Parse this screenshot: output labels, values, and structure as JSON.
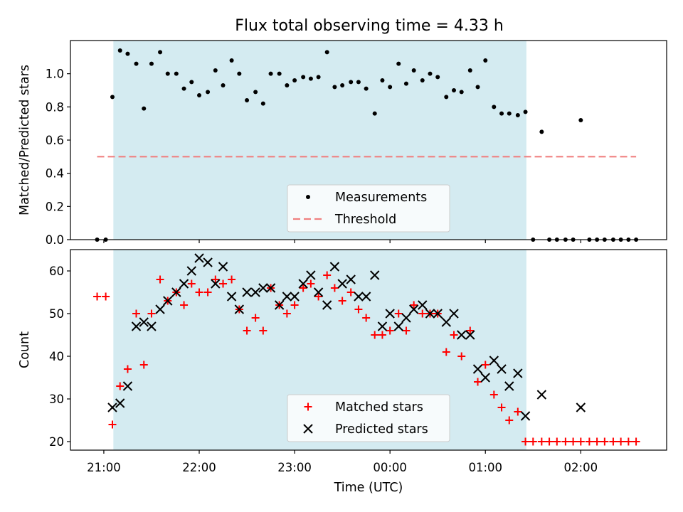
{
  "chart_data": [
    {
      "type": "scatter",
      "title": "Flux total observing time = 4.33 h",
      "xlabel": "",
      "ylabel": "Matched/Predicted stars",
      "xlim": [
        -0.35,
        5.9
      ],
      "ylim": [
        0.0,
        1.2
      ],
      "yticks": [
        0.0,
        0.2,
        0.4,
        0.6,
        0.8,
        1.0
      ],
      "ytick_labels": [
        "0.0",
        "0.2",
        "0.4",
        "0.6",
        "0.8",
        "1.0"
      ],
      "xticks": [
        0,
        1,
        2,
        3,
        4,
        5
      ],
      "shaded_span": [
        0.1,
        4.43
      ],
      "shaded_color": "#d4ebf1",
      "threshold": {
        "value": 0.5,
        "x_range": [
          -0.07,
          5.58
        ],
        "color": "#f08080"
      },
      "legend": {
        "location": "bottom-center",
        "entries": [
          "Measurements",
          "Threshold"
        ]
      },
      "series": [
        {
          "name": "Measurements",
          "marker": "dot",
          "color": "#000000",
          "x": [
            -0.07,
            0.02,
            0.09,
            0.17,
            0.25,
            0.34,
            0.42,
            0.5,
            0.59,
            0.67,
            0.76,
            0.84,
            0.92,
            1.0,
            1.09,
            1.17,
            1.25,
            1.34,
            1.42,
            1.5,
            1.59,
            1.67,
            1.75,
            1.84,
            1.92,
            2.0,
            2.09,
            2.17,
            2.25,
            2.34,
            2.42,
            2.5,
            2.59,
            2.67,
            2.75,
            2.84,
            2.92,
            3.0,
            3.09,
            3.17,
            3.25,
            3.34,
            3.42,
            3.5,
            3.59,
            3.67,
            3.75,
            3.84,
            3.92,
            4.0,
            4.09,
            4.17,
            4.25,
            4.34,
            4.42,
            4.5,
            4.59,
            4.67,
            4.75,
            4.84,
            4.92,
            5.0,
            5.09,
            5.17,
            5.25,
            5.34,
            5.42,
            5.5,
            5.58
          ],
          "values": [
            0.0,
            0.0,
            0.86,
            1.14,
            1.12,
            1.06,
            0.79,
            1.06,
            1.13,
            1.0,
            1.0,
            0.91,
            0.95,
            0.87,
            0.89,
            1.02,
            0.93,
            1.08,
            1.0,
            0.84,
            0.89,
            0.82,
            1.0,
            1.0,
            0.93,
            0.96,
            0.98,
            0.97,
            0.98,
            1.13,
            0.92,
            0.93,
            0.95,
            0.95,
            0.91,
            0.76,
            0.96,
            0.92,
            1.06,
            0.94,
            1.02,
            0.96,
            1.0,
            0.98,
            0.86,
            0.9,
            0.89,
            1.02,
            0.92,
            1.08,
            0.8,
            0.76,
            0.76,
            0.75,
            0.77,
            0.0,
            0.65,
            0.0,
            0.0,
            0.0,
            0.0,
            0.72,
            0.0,
            0.0,
            0.0,
            0.0,
            0.0,
            0.0,
            0.0
          ]
        }
      ]
    },
    {
      "type": "scatter",
      "title": "",
      "xlabel": "Time (UTC)",
      "ylabel": "Count",
      "xlim": [
        -0.35,
        5.9
      ],
      "ylim": [
        18,
        65
      ],
      "yticks": [
        20,
        30,
        40,
        50,
        60
      ],
      "ytick_labels": [
        "20",
        "30",
        "40",
        "50",
        "60"
      ],
      "xticks": [
        0,
        1,
        2,
        3,
        4,
        5
      ],
      "xtick_labels": [
        "21:00",
        "22:00",
        "23:00",
        "00:00",
        "01:00",
        "02:00"
      ],
      "shaded_span": [
        0.1,
        4.43
      ],
      "shaded_color": "#d4ebf1",
      "legend": {
        "location": "bottom-center",
        "entries": [
          "Matched stars",
          "Predicted stars"
        ]
      },
      "series": [
        {
          "name": "Matched stars",
          "marker": "plus",
          "color": "#ff0000",
          "x": [
            -0.07,
            0.02,
            0.09,
            0.17,
            0.25,
            0.34,
            0.42,
            0.5,
            0.59,
            0.67,
            0.76,
            0.84,
            0.92,
            1.0,
            1.09,
            1.17,
            1.25,
            1.34,
            1.42,
            1.5,
            1.59,
            1.67,
            1.75,
            1.84,
            1.92,
            2.0,
            2.09,
            2.17,
            2.25,
            2.34,
            2.42,
            2.5,
            2.59,
            2.67,
            2.75,
            2.84,
            2.92,
            3.0,
            3.09,
            3.17,
            3.25,
            3.34,
            3.42,
            3.5,
            3.59,
            3.67,
            3.75,
            3.84,
            3.92,
            4.0,
            4.09,
            4.17,
            4.25,
            4.34,
            4.42,
            4.5,
            4.59,
            4.67,
            4.75,
            4.84,
            4.92,
            5.0,
            5.09,
            5.17,
            5.25,
            5.34,
            5.42,
            5.5,
            5.58
          ],
          "values": [
            54,
            54,
            24,
            33,
            37,
            50,
            38,
            50,
            58,
            53,
            55,
            52,
            57,
            55,
            55,
            58,
            57,
            58,
            51,
            46,
            49,
            46,
            56,
            52,
            50,
            52,
            56,
            57,
            54,
            59,
            56,
            53,
            55,
            51,
            49,
            45,
            45,
            46,
            50,
            46,
            52,
            50,
            50,
            50,
            41,
            45,
            40,
            46,
            34,
            38,
            31,
            28,
            25,
            27,
            20,
            20,
            20,
            20,
            20,
            20,
            20,
            20,
            20,
            20,
            20,
            20,
            20,
            20,
            20
          ]
        },
        {
          "name": "Predicted stars",
          "marker": "x",
          "color": "#000000",
          "x": [
            0.09,
            0.17,
            0.25,
            0.34,
            0.42,
            0.5,
            0.59,
            0.67,
            0.76,
            0.84,
            0.92,
            1.0,
            1.09,
            1.17,
            1.25,
            1.34,
            1.42,
            1.5,
            1.59,
            1.67,
            1.75,
            1.84,
            1.92,
            2.0,
            2.09,
            2.17,
            2.25,
            2.34,
            2.42,
            2.5,
            2.59,
            2.67,
            2.75,
            2.84,
            2.92,
            3.0,
            3.09,
            3.17,
            3.25,
            3.34,
            3.42,
            3.5,
            3.59,
            3.67,
            3.75,
            3.84,
            3.92,
            4.0,
            4.09,
            4.17,
            4.25,
            4.34,
            4.42,
            4.59,
            5.0
          ],
          "values": [
            28,
            29,
            33,
            47,
            48,
            47,
            51,
            53,
            55,
            57,
            60,
            63,
            62,
            57,
            61,
            54,
            51,
            55,
            55,
            56,
            56,
            52,
            54,
            54,
            57,
            59,
            55,
            52,
            61,
            57,
            58,
            54,
            54,
            59,
            47,
            50,
            47,
            49,
            51,
            52,
            50,
            50,
            48,
            50,
            45,
            45,
            37,
            35,
            39,
            37,
            33,
            36,
            26,
            31,
            28
          ]
        }
      ]
    }
  ]
}
